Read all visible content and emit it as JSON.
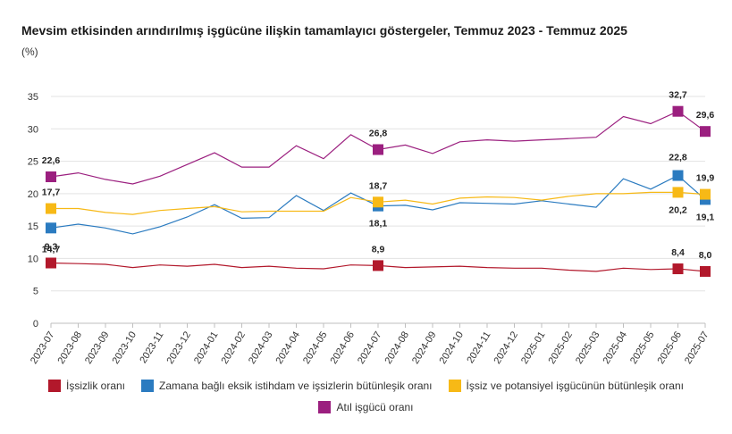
{
  "title": "Mevsim etkisinden arındırılmış işgücüne ilişkin tamamlayıcı göstergeler, Temmuz 2023 - Temmuz 2025",
  "unit": "(%)",
  "chart_data": {
    "type": "line",
    "title": "Mevsim etkisinden arındırılmış işgücüne ilişkin tamamlayıcı göstergeler, Temmuz 2023 - Temmuz 2025",
    "ylabel": "(%)",
    "ylim": [
      0,
      35
    ],
    "yticks": [
      0,
      5,
      10,
      15,
      20,
      25,
      30,
      35
    ],
    "grid": true,
    "legend_position": "bottom",
    "categories": [
      "2023-07",
      "2023-08",
      "2023-09",
      "2023-10",
      "2023-11",
      "2023-12",
      "2024-01",
      "2024-02",
      "2024-03",
      "2024-04",
      "2024-05",
      "2024-06",
      "2024-07",
      "2024-08",
      "2024-09",
      "2024-10",
      "2024-11",
      "2024-12",
      "2025-01",
      "2025-02",
      "2025-03",
      "2025-04",
      "2025-05",
      "2025-06",
      "2025-07"
    ],
    "series": [
      {
        "name": "İşsizlik oranı",
        "color": "#b2182b",
        "values": [
          9.3,
          9.2,
          9.1,
          8.6,
          9.0,
          8.8,
          9.1,
          8.6,
          8.8,
          8.5,
          8.4,
          9.0,
          8.9,
          8.6,
          8.7,
          8.8,
          8.6,
          8.5,
          8.5,
          8.2,
          8.0,
          8.5,
          8.3,
          8.4,
          8.0
        ],
        "labeled_points": [
          {
            "index": 0,
            "label": "9,3"
          },
          {
            "index": 12,
            "label": "8,9"
          },
          {
            "index": 23,
            "label": "8,4"
          },
          {
            "index": 24,
            "label": "8,0"
          }
        ]
      },
      {
        "name": "Zamana bağlı eksik istihdam ve işsizlerin bütünleşik oranı",
        "color": "#2b7bc0",
        "values": [
          14.7,
          15.3,
          14.7,
          13.8,
          14.9,
          16.4,
          18.3,
          16.2,
          16.3,
          19.7,
          17.4,
          20.1,
          18.1,
          18.2,
          17.5,
          18.6,
          18.5,
          18.4,
          18.9,
          18.4,
          17.9,
          22.3,
          20.7,
          22.8,
          19.1
        ],
        "labeled_points": [
          {
            "index": 0,
            "label": "14,7"
          },
          {
            "index": 12,
            "label": "18,1"
          },
          {
            "index": 23,
            "label": "22,8"
          },
          {
            "index": 24,
            "label": "19,1"
          }
        ]
      },
      {
        "name": "İşsiz ve potansiyel işgücünün bütünleşik oranı",
        "color": "#f7b916",
        "values": [
          17.7,
          17.7,
          17.1,
          16.8,
          17.4,
          17.7,
          18.0,
          17.2,
          17.3,
          17.3,
          17.3,
          19.4,
          18.7,
          19.0,
          18.4,
          19.3,
          19.5,
          19.4,
          19.0,
          19.6,
          20.0,
          20.0,
          20.2,
          20.2,
          19.9
        ],
        "labeled_points": [
          {
            "index": 0,
            "label": "17,7"
          },
          {
            "index": 12,
            "label": "18,7"
          },
          {
            "index": 23,
            "label": "20,2"
          },
          {
            "index": 24,
            "label": "19,9"
          }
        ]
      },
      {
        "name": "Atıl işgücü oranı",
        "color": "#9b1f7f",
        "values": [
          22.6,
          23.2,
          22.2,
          21.5,
          22.7,
          24.5,
          26.3,
          24.1,
          24.1,
          27.4,
          25.4,
          29.1,
          26.8,
          27.5,
          26.2,
          28.0,
          28.3,
          28.1,
          28.3,
          28.5,
          28.7,
          31.9,
          30.8,
          32.7,
          29.6
        ],
        "labeled_points": [
          {
            "index": 0,
            "label": "22,6"
          },
          {
            "index": 12,
            "label": "26,8"
          },
          {
            "index": 23,
            "label": "32,7"
          },
          {
            "index": 24,
            "label": "29,6"
          }
        ]
      }
    ]
  }
}
